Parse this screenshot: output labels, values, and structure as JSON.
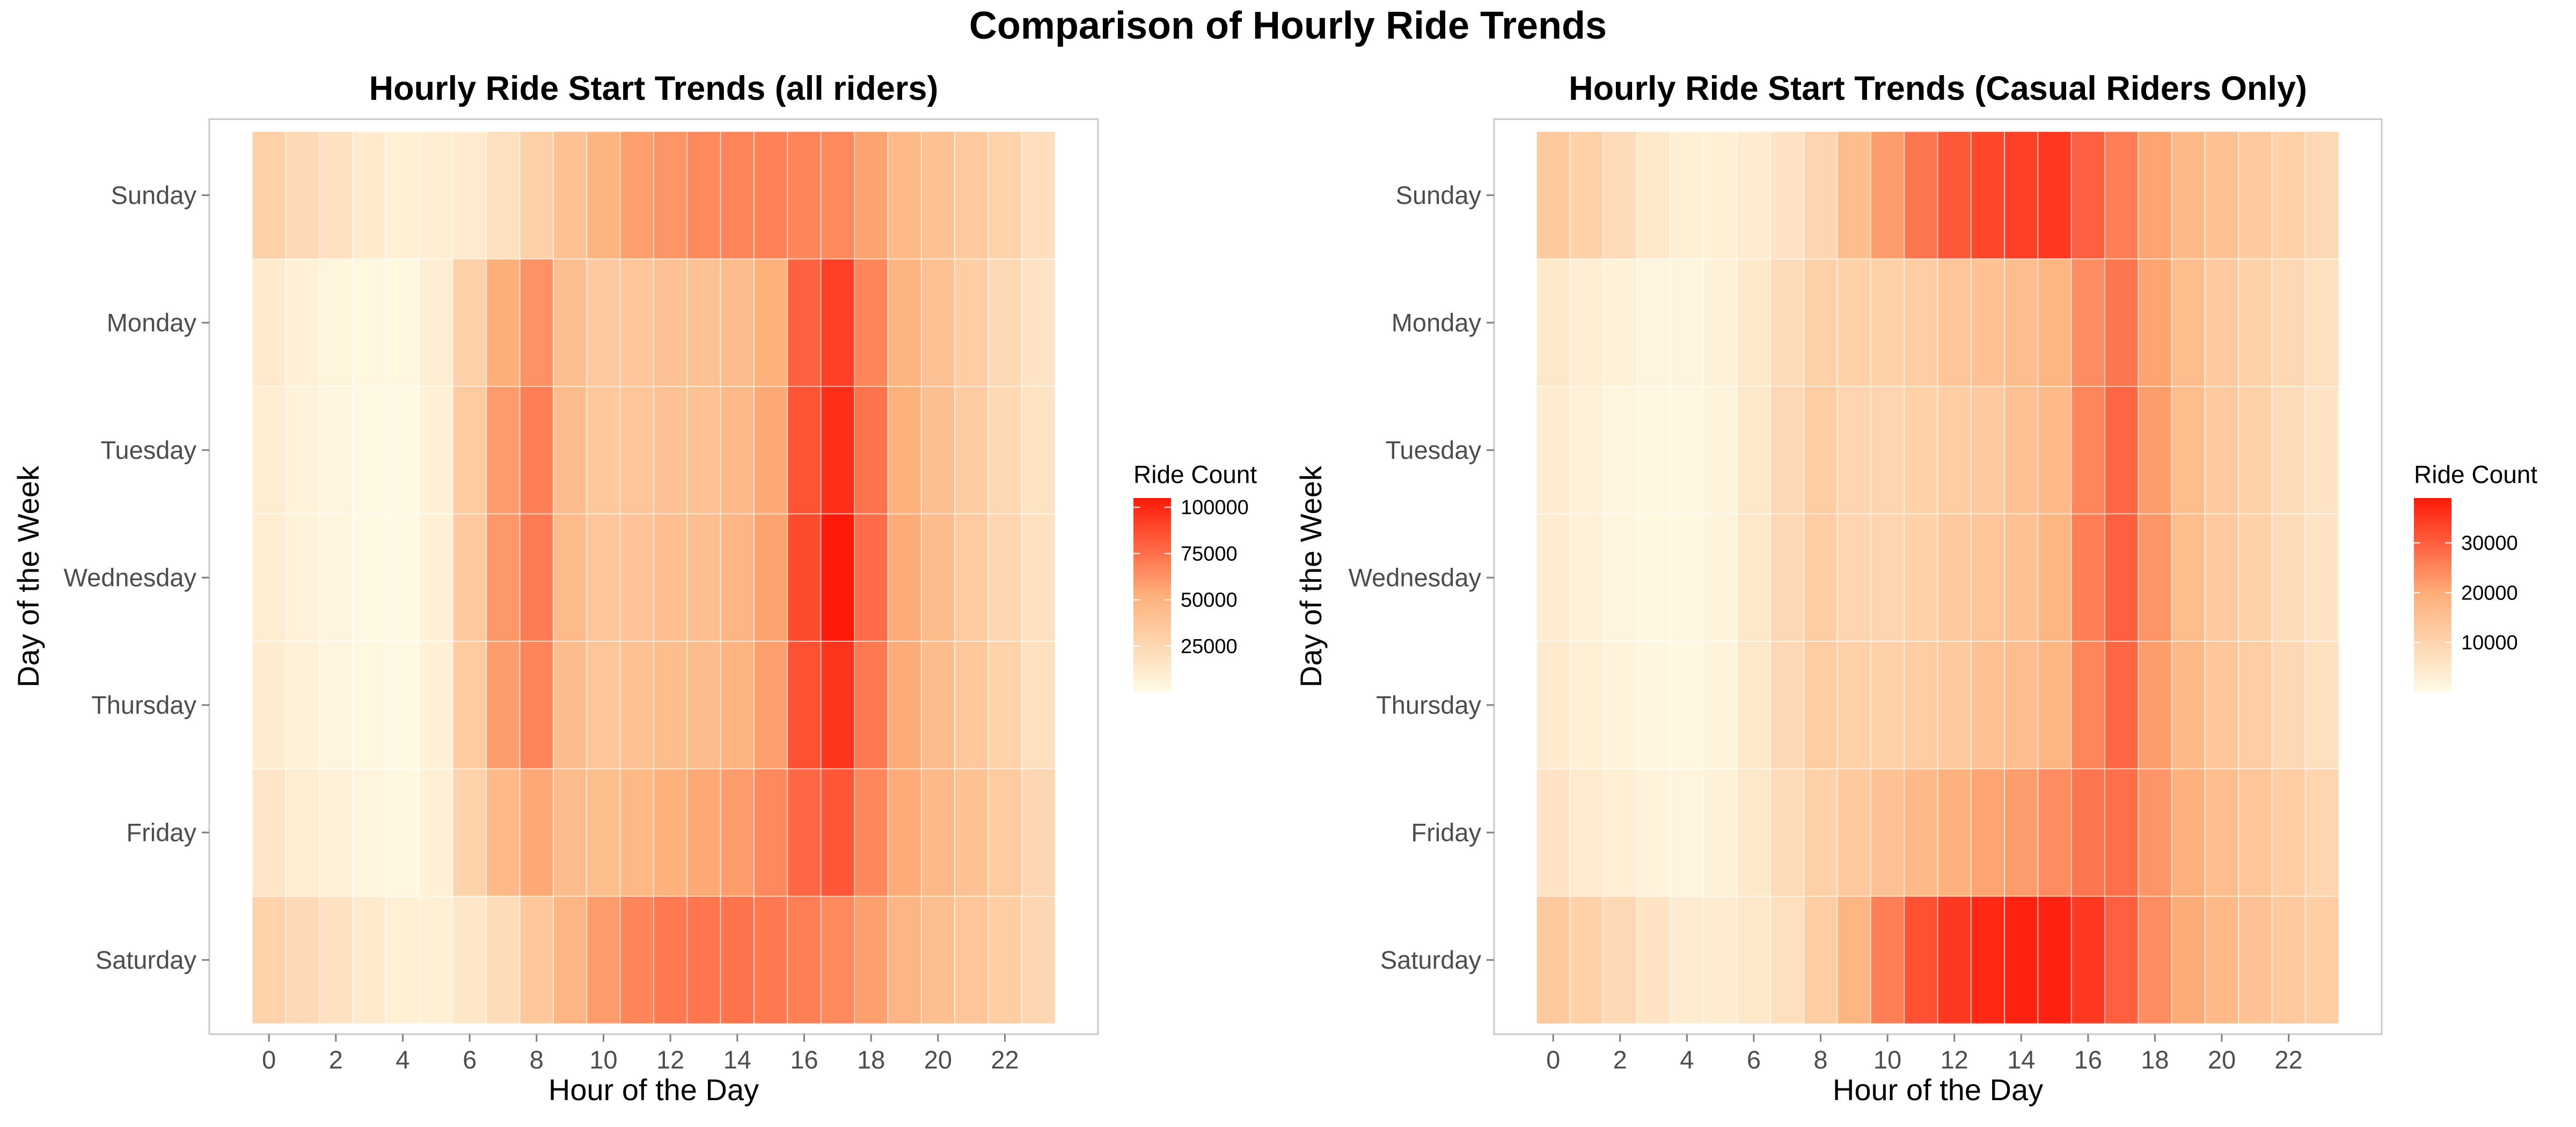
{
  "figure": {
    "title": "Comparison of Hourly Ride Trends"
  },
  "colors": {
    "low": "#fffbe6",
    "mid": "#fdb07a",
    "high": "#ff1a0a",
    "panel_border": "#c8c8c8",
    "tick": "#7f7f7f"
  },
  "chart_data": [
    {
      "type": "heatmap",
      "title": "Hourly Ride Start Trends (all riders)",
      "xlabel": "Hour of the Day",
      "ylabel": "Day of the Week",
      "x": [
        0,
        1,
        2,
        3,
        4,
        5,
        6,
        7,
        8,
        9,
        10,
        11,
        12,
        13,
        14,
        15,
        16,
        17,
        18,
        19,
        20,
        21,
        22,
        23
      ],
      "x_tick_labels": [
        "0",
        "2",
        "4",
        "6",
        "8",
        "10",
        "12",
        "14",
        "16",
        "18",
        "20",
        "22"
      ],
      "y": [
        "Sunday",
        "Monday",
        "Tuesday",
        "Wednesday",
        "Thursday",
        "Friday",
        "Saturday"
      ],
      "legend": {
        "title": "Ride Count",
        "ticks": [
          "25000",
          "50000",
          "75000",
          "100000"
        ],
        "position": "right"
      },
      "scale": {
        "min": 0,
        "max": 105000
      },
      "values": [
        [
          30000,
          24000,
          18000,
          12000,
          8000,
          9000,
          12000,
          19000,
          30000,
          40000,
          50000,
          58000,
          62000,
          66000,
          68000,
          69000,
          68000,
          66000,
          57000,
          46000,
          40000,
          35000,
          28000,
          20000
        ],
        [
          12000,
          8000,
          5000,
          3000,
          3000,
          9000,
          30000,
          53000,
          63000,
          42000,
          35000,
          37000,
          40000,
          40000,
          44000,
          52000,
          80000,
          92000,
          68000,
          50000,
          40000,
          32000,
          24000,
          16000
        ],
        [
          10000,
          6000,
          4000,
          2000,
          2000,
          8000,
          34000,
          60000,
          70000,
          44000,
          36000,
          38000,
          40000,
          40000,
          46000,
          55000,
          85000,
          98000,
          74000,
          52000,
          42000,
          33000,
          25000,
          17000
        ],
        [
          10000,
          6000,
          4000,
          2000,
          2000,
          8000,
          35000,
          61000,
          71000,
          45000,
          37000,
          39000,
          42000,
          42000,
          48000,
          57000,
          88000,
          105000,
          76000,
          54000,
          44000,
          34000,
          26000,
          18000
        ],
        [
          11000,
          7000,
          4000,
          3000,
          2000,
          8000,
          34000,
          59000,
          68000,
          44000,
          38000,
          40000,
          43000,
          44000,
          50000,
          58000,
          86000,
          96000,
          72000,
          54000,
          44000,
          36000,
          28000,
          19000
        ],
        [
          15000,
          10000,
          7000,
          4000,
          3000,
          8000,
          28000,
          46000,
          55000,
          44000,
          43000,
          47000,
          52000,
          55000,
          59000,
          66000,
          78000,
          84000,
          67000,
          54000,
          46000,
          40000,
          34000,
          26000
        ],
        [
          28000,
          24000,
          18000,
          12000,
          8000,
          8000,
          14000,
          22000,
          36000,
          48000,
          60000,
          68000,
          72000,
          73000,
          74000,
          72000,
          70000,
          66000,
          58000,
          48000,
          42000,
          37000,
          32000,
          26000
        ]
      ]
    },
    {
      "type": "heatmap",
      "title": "Hourly Ride Start Trends (Casual Riders Only)",
      "xlabel": "Hour of the Day",
      "ylabel": "Day of the Week",
      "x": [
        0,
        1,
        2,
        3,
        4,
        5,
        6,
        7,
        8,
        9,
        10,
        11,
        12,
        13,
        14,
        15,
        16,
        17,
        18,
        19,
        20,
        21,
        22,
        23
      ],
      "x_tick_labels": [
        "0",
        "2",
        "4",
        "6",
        "8",
        "10",
        "12",
        "14",
        "16",
        "18",
        "20",
        "22"
      ],
      "y": [
        "Sunday",
        "Monday",
        "Tuesday",
        "Wednesday",
        "Thursday",
        "Friday",
        "Saturday"
      ],
      "legend": {
        "title": "Ride Count",
        "ticks": [
          "10000",
          "20000",
          "30000"
        ],
        "position": "right"
      },
      "scale": {
        "min": 0,
        "max": 39000
      },
      "values": [
        [
          13000,
          11000,
          8000,
          5000,
          3000,
          3000,
          4000,
          6000,
          10000,
          16000,
          22000,
          27000,
          31000,
          33000,
          34000,
          35000,
          30000,
          26000,
          21000,
          17000,
          15000,
          13000,
          11000,
          9000
        ],
        [
          5000,
          3500,
          2500,
          1500,
          1500,
          2500,
          5000,
          8000,
          11000,
          11000,
          11000,
          12000,
          14000,
          15000,
          16000,
          18000,
          24000,
          27000,
          21000,
          16000,
          13000,
          11000,
          9000,
          7000
        ],
        [
          4000,
          2500,
          1500,
          1000,
          1000,
          2000,
          5000,
          9000,
          12000,
          10000,
          10000,
          11000,
          12000,
          13000,
          15000,
          17000,
          25000,
          29000,
          22000,
          16000,
          13000,
          11000,
          8000,
          6000
        ],
        [
          4000,
          2500,
          1500,
          1000,
          1000,
          2000,
          5000,
          9000,
          12000,
          10000,
          10000,
          11000,
          13000,
          14000,
          15000,
          18000,
          26000,
          30000,
          23000,
          16000,
          13000,
          11000,
          8000,
          6000
        ],
        [
          4500,
          3000,
          2000,
          1200,
          1000,
          2000,
          5000,
          9000,
          12000,
          11000,
          11000,
          12000,
          13000,
          15000,
          16000,
          18000,
          25000,
          29000,
          22000,
          17000,
          14000,
          12000,
          9000,
          7000
        ],
        [
          6000,
          4500,
          3000,
          2000,
          1500,
          2500,
          5000,
          8000,
          11000,
          13000,
          15000,
          17000,
          19000,
          21000,
          22000,
          24000,
          27000,
          28000,
          23000,
          19000,
          16000,
          14000,
          12000,
          10000
        ],
        [
          13000,
          11000,
          9000,
          6000,
          4000,
          4000,
          5000,
          7000,
          12000,
          18000,
          26000,
          32000,
          35000,
          37000,
          38000,
          38000,
          35000,
          30000,
          24000,
          20000,
          17000,
          15000,
          13000,
          12000
        ]
      ]
    }
  ]
}
